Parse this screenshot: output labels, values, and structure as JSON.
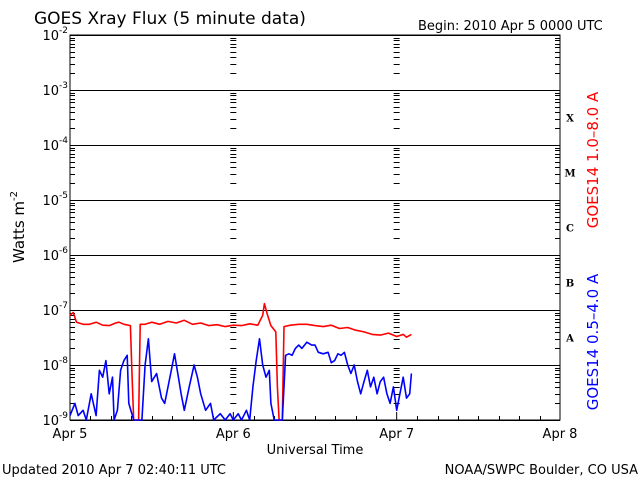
{
  "chart_data": {
    "type": "line",
    "title": "GOES Xray Flux (5 minute data)",
    "begin_label": "Begin:  2010 Apr 5 0000 UTC",
    "ylabel_base": "Watts m",
    "ylabel_exp": "-2",
    "xlabel": "Universal Time",
    "y_scale": "log",
    "ylim": [
      1e-09,
      0.01
    ],
    "y_ticks": [
      {
        "base": "10",
        "exp": "-2",
        "value": 0.01
      },
      {
        "base": "10",
        "exp": "-3",
        "value": 0.001
      },
      {
        "base": "10",
        "exp": "-4",
        "value": 0.0001
      },
      {
        "base": "10",
        "exp": "-5",
        "value": 1e-05
      },
      {
        "base": "10",
        "exp": "-6",
        "value": 1e-06
      },
      {
        "base": "10",
        "exp": "-7",
        "value": 1e-07
      },
      {
        "base": "10",
        "exp": "-8",
        "value": 1e-08
      },
      {
        "base": "10",
        "exp": "-9",
        "value": 1e-09
      }
    ],
    "x_ticks": [
      {
        "label": "Apr 5",
        "day": 0
      },
      {
        "label": "Apr 6",
        "day": 1
      },
      {
        "label": "Apr 7",
        "day": 2
      },
      {
        "label": "Apr 8",
        "day": 3
      }
    ],
    "xlim_days": [
      0,
      3
    ],
    "flare_classes": [
      {
        "label": "X",
        "level": 0.0001
      },
      {
        "label": "M",
        "level": 1e-05
      },
      {
        "label": "C",
        "level": 1e-06
      },
      {
        "label": "B",
        "level": 1e-07
      },
      {
        "label": "A",
        "level": 1e-08
      }
    ],
    "series": [
      {
        "name": "GOES14 1.0–8.0 A",
        "color": "#ff0000",
        "points": [
          [
            0.0,
            8e-08
          ],
          [
            0.02,
            9e-08
          ],
          [
            0.04,
            6e-08
          ],
          [
            0.08,
            5.5e-08
          ],
          [
            0.12,
            5.5e-08
          ],
          [
            0.16,
            6e-08
          ],
          [
            0.2,
            5.3e-08
          ],
          [
            0.24,
            5.2e-08
          ],
          [
            0.28,
            5.8e-08
          ],
          [
            0.3,
            6e-08
          ],
          [
            0.33,
            5.5e-08
          ],
          [
            0.37,
            5.2e-08
          ],
          [
            0.38,
            6e-09
          ],
          [
            0.39,
            1e-09
          ],
          [
            0.42,
            1e-09
          ],
          [
            0.43,
            5.5e-08
          ],
          [
            0.46,
            5.5e-08
          ],
          [
            0.5,
            6e-08
          ],
          [
            0.55,
            5.5e-08
          ],
          [
            0.6,
            6.2e-08
          ],
          [
            0.65,
            5.8e-08
          ],
          [
            0.7,
            6.5e-08
          ],
          [
            0.75,
            5.5e-08
          ],
          [
            0.8,
            5.8e-08
          ],
          [
            0.85,
            5.2e-08
          ],
          [
            0.9,
            5.4e-08
          ],
          [
            0.95,
            5e-08
          ],
          [
            1.0,
            5.3e-08
          ],
          [
            1.05,
            5.2e-08
          ],
          [
            1.1,
            5.6e-08
          ],
          [
            1.15,
            5.3e-08
          ],
          [
            1.18,
            8e-08
          ],
          [
            1.19,
            1.3e-07
          ],
          [
            1.21,
            8e-08
          ],
          [
            1.23,
            5.2e-08
          ],
          [
            1.26,
            4e-08
          ],
          [
            1.27,
            4e-09
          ],
          [
            1.28,
            1e-09
          ],
          [
            1.3,
            1e-09
          ],
          [
            1.31,
            5e-08
          ],
          [
            1.35,
            5.3e-08
          ],
          [
            1.4,
            5.5e-08
          ],
          [
            1.45,
            5.5e-08
          ],
          [
            1.5,
            5.2e-08
          ],
          [
            1.55,
            5e-08
          ],
          [
            1.6,
            5.3e-08
          ],
          [
            1.65,
            4.6e-08
          ],
          [
            1.7,
            4.8e-08
          ],
          [
            1.75,
            4.3e-08
          ],
          [
            1.8,
            4e-08
          ],
          [
            1.85,
            3.6e-08
          ],
          [
            1.9,
            3.5e-08
          ],
          [
            1.95,
            3.8e-08
          ],
          [
            2.0,
            3.3e-08
          ],
          [
            2.04,
            3.6e-08
          ],
          [
            2.06,
            3.2e-08
          ],
          [
            2.09,
            3.6e-08
          ]
        ]
      },
      {
        "name": "GOES14 0.5–4.0 A",
        "color": "#0000ff",
        "points": [
          [
            0.0,
            1.2e-09
          ],
          [
            0.03,
            2e-09
          ],
          [
            0.05,
            1.2e-09
          ],
          [
            0.08,
            1.5e-09
          ],
          [
            0.1,
            1e-09
          ],
          [
            0.13,
            3e-09
          ],
          [
            0.16,
            1.2e-09
          ],
          [
            0.18,
            8e-09
          ],
          [
            0.2,
            6e-09
          ],
          [
            0.22,
            1.2e-08
          ],
          [
            0.24,
            3e-09
          ],
          [
            0.26,
            6e-09
          ],
          [
            0.27,
            1e-09
          ],
          [
            0.29,
            1.5e-09
          ],
          [
            0.31,
            8e-09
          ],
          [
            0.33,
            1.2e-08
          ],
          [
            0.35,
            1.5e-08
          ],
          [
            0.36,
            2e-09
          ],
          [
            0.39,
            1e-09
          ],
          [
            0.44,
            1e-09
          ],
          [
            0.46,
            1e-08
          ],
          [
            0.48,
            3e-08
          ],
          [
            0.5,
            5e-09
          ],
          [
            0.53,
            7e-09
          ],
          [
            0.56,
            2.5e-09
          ],
          [
            0.58,
            2e-09
          ],
          [
            0.6,
            4e-09
          ],
          [
            0.62,
            8e-09
          ],
          [
            0.64,
            1.6e-08
          ],
          [
            0.66,
            7e-09
          ],
          [
            0.68,
            3e-09
          ],
          [
            0.7,
            1.5e-09
          ],
          [
            0.73,
            4e-09
          ],
          [
            0.76,
            1e-08
          ],
          [
            0.78,
            6e-09
          ],
          [
            0.8,
            3e-09
          ],
          [
            0.83,
            1.5e-09
          ],
          [
            0.86,
            2e-09
          ],
          [
            0.88,
            1e-09
          ],
          [
            0.92,
            1.3e-09
          ],
          [
            0.95,
            1e-09
          ],
          [
            0.98,
            1.3e-09
          ],
          [
            1.0,
            1e-09
          ],
          [
            1.03,
            1.3e-09
          ],
          [
            1.05,
            1e-09
          ],
          [
            1.08,
            1.5e-09
          ],
          [
            1.1,
            1e-09
          ],
          [
            1.12,
            4e-09
          ],
          [
            1.14,
            1.2e-08
          ],
          [
            1.16,
            3e-08
          ],
          [
            1.18,
            1e-08
          ],
          [
            1.2,
            6e-09
          ],
          [
            1.22,
            8e-09
          ],
          [
            1.23,
            2e-09
          ],
          [
            1.25,
            1e-09
          ],
          [
            1.27,
            1e-09
          ],
          [
            1.3,
            1e-09
          ],
          [
            1.32,
            1.5e-08
          ],
          [
            1.34,
            1.6e-08
          ],
          [
            1.36,
            1.5e-08
          ],
          [
            1.38,
            2e-08
          ],
          [
            1.4,
            2.3e-08
          ],
          [
            1.42,
            2e-08
          ],
          [
            1.45,
            2.6e-08
          ],
          [
            1.48,
            2.3e-08
          ],
          [
            1.5,
            2.3e-08
          ],
          [
            1.52,
            1.7e-08
          ],
          [
            1.55,
            1.6e-08
          ],
          [
            1.58,
            1.7e-08
          ],
          [
            1.6,
            1.1e-08
          ],
          [
            1.62,
            1.2e-08
          ],
          [
            1.64,
            1.6e-08
          ],
          [
            1.66,
            1.5e-08
          ],
          [
            1.68,
            1.7e-08
          ],
          [
            1.7,
            1e-08
          ],
          [
            1.72,
            7e-09
          ],
          [
            1.74,
            1e-08
          ],
          [
            1.76,
            5e-09
          ],
          [
            1.78,
            3e-09
          ],
          [
            1.8,
            5e-09
          ],
          [
            1.82,
            8e-09
          ],
          [
            1.84,
            4e-09
          ],
          [
            1.86,
            6e-09
          ],
          [
            1.88,
            3e-09
          ],
          [
            1.9,
            5e-09
          ],
          [
            1.92,
            6e-09
          ],
          [
            1.94,
            3e-09
          ],
          [
            1.96,
            2e-09
          ],
          [
            1.98,
            4e-09
          ],
          [
            2.0,
            1.5e-09
          ],
          [
            2.02,
            3e-09
          ],
          [
            2.04,
            6e-09
          ],
          [
            2.06,
            2.5e-09
          ],
          [
            2.08,
            3e-09
          ],
          [
            2.09,
            7e-09
          ]
        ]
      }
    ],
    "grid": true,
    "legend": "right side, vertical"
  },
  "footer": {
    "updated": "Updated 2010 Apr  7 02:40:11 UTC",
    "source": "NOAA/SWPC Boulder, CO USA"
  }
}
